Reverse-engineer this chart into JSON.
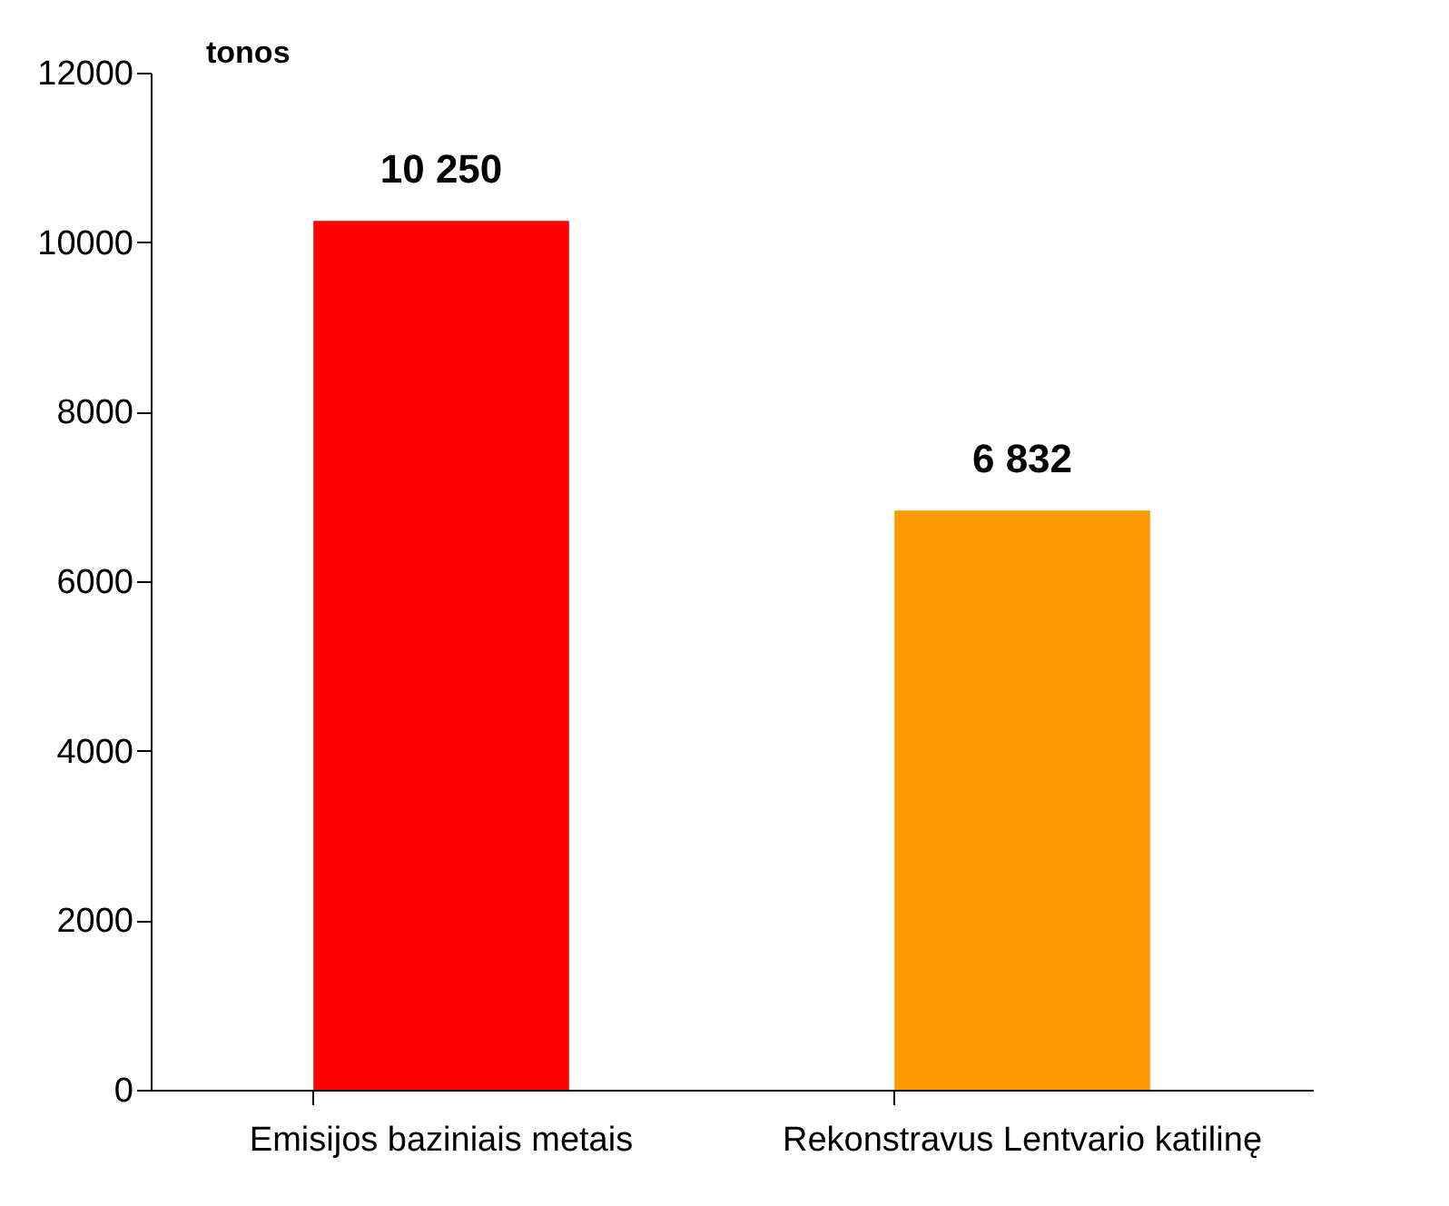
{
  "chart_data": {
    "type": "bar",
    "ylabel": "tonos",
    "categories": [
      "Emisijos baziniais metais",
      "Rekonstravus Lentvario katilinę"
    ],
    "values": [
      10250,
      6832
    ],
    "colors": [
      "#ff0000",
      "#ff9900"
    ],
    "value_labels": [
      "10 250",
      "6 832"
    ],
    "ylim": [
      0,
      12000
    ],
    "yticks": [
      0,
      2000,
      4000,
      6000,
      8000,
      10000,
      12000
    ],
    "grid": false
  }
}
